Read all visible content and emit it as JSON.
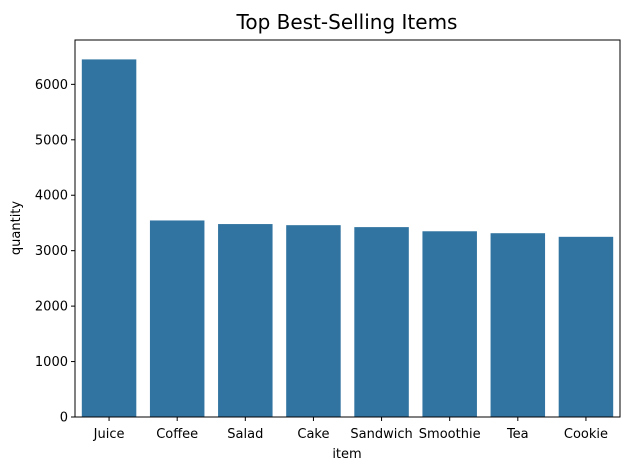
{
  "chart_data": {
    "type": "bar",
    "title": "Top Best-Selling Items",
    "xlabel": "item",
    "ylabel": "quantity",
    "categories": [
      "Juice",
      "Coffee",
      "Salad",
      "Cake",
      "Sandwich",
      "Smoothie",
      "Tea",
      "Cookie"
    ],
    "values": [
      6450,
      3545,
      3480,
      3460,
      3425,
      3350,
      3315,
      3250
    ],
    "ylim": [
      0,
      6800
    ],
    "yticks": [
      0,
      1000,
      2000,
      3000,
      4000,
      5000,
      6000
    ],
    "bar_color": "#3274a1",
    "grid": false
  }
}
